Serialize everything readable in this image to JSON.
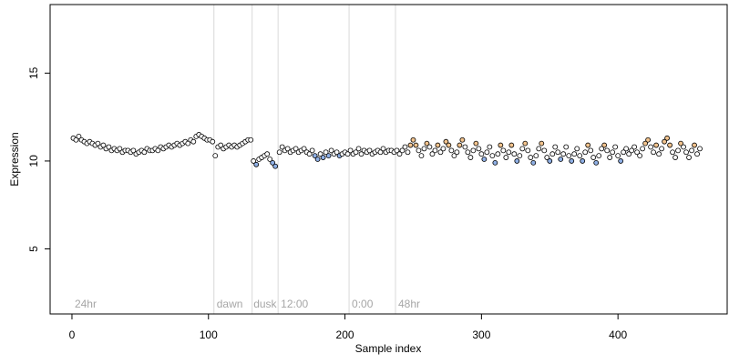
{
  "chart_data": {
    "type": "scatter",
    "xlabel": "Sample index",
    "ylabel": "Expression",
    "xlim": [
      -16,
      480
    ],
    "ylim": [
      1.3,
      18.9
    ],
    "x_ticks": [
      0,
      100,
      200,
      300,
      400
    ],
    "y_ticks": [
      5,
      10,
      15
    ],
    "grid": false,
    "section_markers": [
      {
        "x": 104,
        "label": "24hr",
        "label_x": 2
      },
      {
        "x": 132,
        "label": "dawn",
        "label_x": 106
      },
      {
        "x": 151,
        "label": "dusk",
        "label_x": 133
      },
      {
        "x": 203,
        "label": "12:00",
        "label_x": 153
      },
      {
        "x": 237,
        "label": "0:00",
        "label_x": 205
      },
      {
        "x": null,
        "label": "48hr",
        "label_x": 239
      }
    ],
    "point_colors": {
      "default": "#ffffff",
      "orange": "#f2c38d",
      "blue": "#8fb0e6",
      "outline": "#000000"
    },
    "series": [
      {
        "group": "24hr",
        "points": [
          [
            1,
            11.3
          ],
          [
            3,
            11.2
          ],
          [
            5,
            11.4
          ],
          [
            7,
            11.2
          ],
          [
            9,
            11.1
          ],
          [
            11,
            11.0
          ],
          [
            13,
            11.1
          ],
          [
            15,
            11.0
          ],
          [
            17,
            10.9
          ],
          [
            19,
            11.0
          ],
          [
            21,
            10.8
          ],
          [
            23,
            10.9
          ],
          [
            25,
            10.7
          ],
          [
            27,
            10.8
          ],
          [
            29,
            10.6
          ],
          [
            31,
            10.7
          ],
          [
            33,
            10.6
          ],
          [
            35,
            10.7
          ],
          [
            37,
            10.5
          ],
          [
            39,
            10.6
          ],
          [
            41,
            10.6
          ],
          [
            43,
            10.5
          ],
          [
            45,
            10.6
          ],
          [
            47,
            10.4
          ],
          [
            49,
            10.5
          ],
          [
            51,
            10.6
          ],
          [
            53,
            10.5
          ],
          [
            55,
            10.7
          ],
          [
            57,
            10.6
          ],
          [
            59,
            10.6
          ],
          [
            61,
            10.7
          ],
          [
            63,
            10.6
          ],
          [
            65,
            10.8
          ],
          [
            67,
            10.7
          ],
          [
            69,
            10.8
          ],
          [
            71,
            10.9
          ],
          [
            73,
            10.8
          ],
          [
            75,
            10.9
          ],
          [
            77,
            11.0
          ],
          [
            79,
            10.9
          ],
          [
            81,
            11.0
          ],
          [
            83,
            11.1
          ],
          [
            85,
            11.0
          ],
          [
            87,
            11.2
          ],
          [
            89,
            11.1
          ],
          [
            91,
            11.4
          ],
          [
            93,
            11.5
          ],
          [
            95,
            11.4
          ],
          [
            97,
            11.3
          ],
          [
            99,
            11.2
          ],
          [
            101,
            11.2
          ],
          [
            103,
            11.1
          ]
        ]
      },
      {
        "group": "dawn",
        "points": [
          [
            105,
            10.3
          ],
          [
            107,
            10.8
          ],
          [
            109,
            10.9
          ],
          [
            111,
            10.7
          ],
          [
            113,
            10.8
          ],
          [
            115,
            10.9
          ],
          [
            117,
            10.8
          ],
          [
            119,
            10.9
          ],
          [
            121,
            10.8
          ],
          [
            123,
            10.9
          ],
          [
            125,
            11.0
          ],
          [
            127,
            11.1
          ],
          [
            129,
            11.2
          ],
          [
            131,
            11.2
          ]
        ]
      },
      {
        "group": "dusk",
        "points": [
          [
            133,
            10.0
          ],
          [
            135,
            9.8
          ],
          [
            137,
            10.1
          ],
          [
            139,
            10.2
          ],
          [
            141,
            10.3
          ],
          [
            143,
            10.4
          ],
          [
            145,
            10.1
          ],
          [
            147,
            9.9
          ],
          [
            149,
            9.7
          ]
        ]
      },
      {
        "group": "12:00",
        "points": [
          [
            152,
            10.5
          ],
          [
            154,
            10.8
          ],
          [
            156,
            10.6
          ],
          [
            158,
            10.7
          ],
          [
            160,
            10.5
          ],
          [
            162,
            10.6
          ],
          [
            164,
            10.7
          ],
          [
            166,
            10.5
          ],
          [
            168,
            10.6
          ],
          [
            170,
            10.7
          ],
          [
            172,
            10.5
          ],
          [
            174,
            10.4
          ],
          [
            176,
            10.6
          ],
          [
            178,
            10.3
          ],
          [
            180,
            10.1
          ],
          [
            182,
            10.4
          ],
          [
            184,
            10.2
          ],
          [
            186,
            10.5
          ],
          [
            188,
            10.3
          ],
          [
            190,
            10.6
          ],
          [
            192,
            10.4
          ],
          [
            194,
            10.5
          ],
          [
            196,
            10.3
          ],
          [
            198,
            10.4
          ],
          [
            200,
            10.5
          ],
          [
            202,
            10.4
          ]
        ]
      },
      {
        "group": "0:00",
        "points": [
          [
            204,
            10.6
          ],
          [
            206,
            10.4
          ],
          [
            208,
            10.5
          ],
          [
            210,
            10.7
          ],
          [
            212,
            10.4
          ],
          [
            214,
            10.6
          ],
          [
            216,
            10.5
          ],
          [
            218,
            10.6
          ],
          [
            220,
            10.4
          ],
          [
            222,
            10.5
          ],
          [
            224,
            10.6
          ],
          [
            226,
            10.5
          ],
          [
            228,
            10.7
          ],
          [
            230,
            10.5
          ],
          [
            232,
            10.6
          ],
          [
            234,
            10.6
          ],
          [
            236,
            10.5
          ]
        ]
      },
      {
        "group": "48hr",
        "points": [
          [
            238,
            10.6
          ],
          [
            240,
            10.4
          ],
          [
            242,
            10.6
          ],
          [
            244,
            10.8
          ],
          [
            246,
            10.5
          ],
          [
            248,
            10.9
          ],
          [
            250,
            11.2
          ],
          [
            252,
            10.9
          ],
          [
            254,
            10.6
          ],
          [
            256,
            10.3
          ],
          [
            258,
            10.7
          ],
          [
            260,
            11.0
          ],
          [
            262,
            10.8
          ],
          [
            264,
            10.4
          ],
          [
            266,
            10.6
          ],
          [
            268,
            10.9
          ],
          [
            270,
            10.5
          ],
          [
            272,
            10.7
          ],
          [
            274,
            11.1
          ],
          [
            276,
            10.9
          ],
          [
            278,
            10.6
          ],
          [
            280,
            10.3
          ],
          [
            282,
            10.5
          ],
          [
            284,
            10.9
          ],
          [
            286,
            11.2
          ],
          [
            288,
            10.8
          ],
          [
            290,
            10.5
          ],
          [
            292,
            10.2
          ],
          [
            294,
            10.6
          ],
          [
            296,
            11.0
          ],
          [
            298,
            10.7
          ],
          [
            300,
            10.4
          ],
          [
            302,
            10.1
          ],
          [
            304,
            10.5
          ],
          [
            306,
            10.8
          ],
          [
            308,
            10.3
          ],
          [
            310,
            9.9
          ],
          [
            312,
            10.4
          ],
          [
            314,
            10.9
          ],
          [
            316,
            10.6
          ],
          [
            318,
            10.2
          ],
          [
            320,
            10.5
          ],
          [
            322,
            10.9
          ],
          [
            324,
            10.4
          ],
          [
            326,
            10.0
          ],
          [
            328,
            10.3
          ],
          [
            330,
            10.7
          ],
          [
            332,
            11.0
          ],
          [
            334,
            10.6
          ],
          [
            336,
            10.2
          ],
          [
            338,
            9.9
          ],
          [
            340,
            10.3
          ],
          [
            342,
            10.7
          ],
          [
            344,
            11.0
          ],
          [
            346,
            10.6
          ],
          [
            348,
            10.2
          ],
          [
            350,
            10.0
          ],
          [
            352,
            10.4
          ],
          [
            354,
            10.8
          ],
          [
            356,
            10.5
          ],
          [
            358,
            10.1
          ],
          [
            360,
            10.4
          ],
          [
            362,
            10.8
          ],
          [
            364,
            10.3
          ],
          [
            366,
            10.0
          ],
          [
            368,
            10.4
          ],
          [
            370,
            10.7
          ],
          [
            372,
            10.3
          ],
          [
            374,
            10.0
          ],
          [
            376,
            10.5
          ],
          [
            378,
            10.9
          ],
          [
            380,
            10.6
          ],
          [
            382,
            10.2
          ],
          [
            384,
            9.9
          ],
          [
            386,
            10.3
          ],
          [
            388,
            10.7
          ],
          [
            390,
            10.9
          ],
          [
            392,
            10.6
          ],
          [
            394,
            10.2
          ],
          [
            396,
            10.5
          ],
          [
            398,
            10.8
          ],
          [
            400,
            10.3
          ],
          [
            402,
            10.0
          ],
          [
            404,
            10.5
          ],
          [
            406,
            10.7
          ],
          [
            408,
            10.4
          ],
          [
            410,
            10.6
          ],
          [
            412,
            10.8
          ],
          [
            414,
            10.5
          ],
          [
            416,
            10.3
          ],
          [
            418,
            10.7
          ],
          [
            420,
            11.0
          ],
          [
            422,
            11.2
          ],
          [
            424,
            10.8
          ],
          [
            426,
            10.5
          ],
          [
            428,
            10.9
          ],
          [
            430,
            10.4
          ],
          [
            432,
            10.7
          ],
          [
            434,
            11.1
          ],
          [
            436,
            11.3
          ],
          [
            438,
            10.9
          ],
          [
            440,
            10.5
          ],
          [
            442,
            10.2
          ],
          [
            444,
            10.6
          ],
          [
            446,
            11.0
          ],
          [
            448,
            10.8
          ],
          [
            450,
            10.5
          ],
          [
            452,
            10.2
          ],
          [
            454,
            10.6
          ],
          [
            456,
            10.9
          ],
          [
            458,
            10.4
          ],
          [
            460,
            10.7
          ]
        ]
      }
    ]
  }
}
